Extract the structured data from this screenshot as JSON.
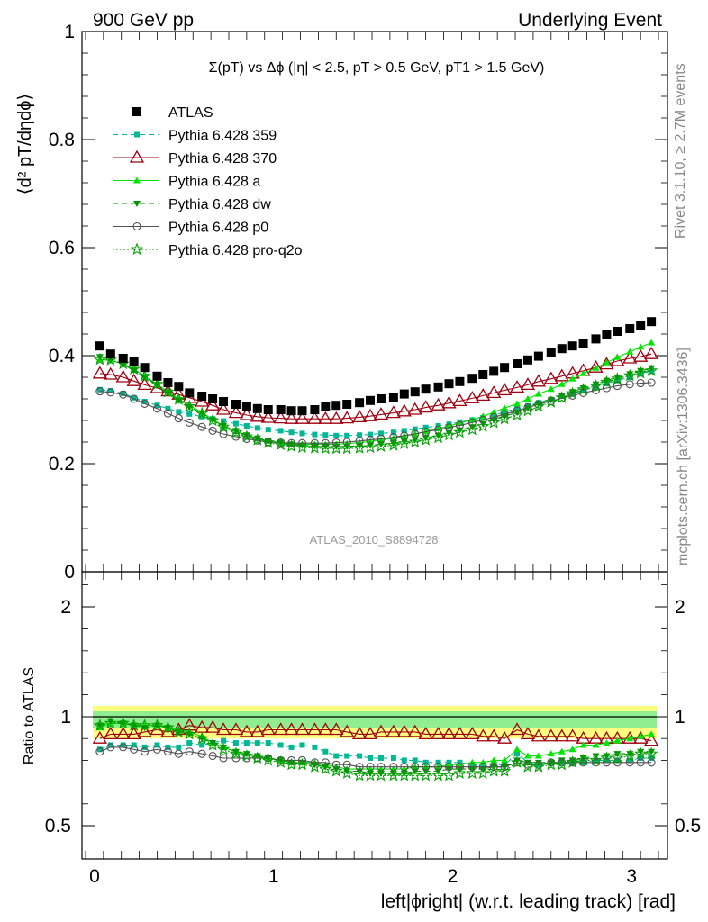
{
  "header": {
    "left": "900 GeV pp",
    "right": "Underlying Event"
  },
  "side_labels": {
    "rivet": "Rivet 3.1.10, ≥ 2.7M events",
    "mcplots": "mcplots.cern.ch [arXiv:1306.3436]"
  },
  "colors": {
    "atlas": "#000000",
    "p359": "#00b894",
    "p370": "#a0000f",
    "pa": "#00e600",
    "pdw": "#009600",
    "pp0": "#505050",
    "pq2o": "#00a000",
    "band_outer": "#ffff80",
    "band_inner": "#90ee90"
  },
  "chart_data": [
    {
      "type": "scatter",
      "title": "Σ(pT) vs Δϕ (|η| < 2.5, pT > 0.5 GeV, pT1 > 1.5 GeV)",
      "ylabel": "⟨d² pT/dηdϕ⟩",
      "xlabel": "",
      "annotation": "ATLAS_2010_S8894728",
      "ylim": [
        0,
        1
      ],
      "xlim": [
        -0.07,
        3.2
      ],
      "yticks": [
        "0",
        "0.2",
        "0.4",
        "0.6",
        "0.8",
        "1"
      ],
      "x": [
        0.03,
        0.09,
        0.16,
        0.22,
        0.28,
        0.35,
        0.41,
        0.47,
        0.53,
        0.6,
        0.66,
        0.72,
        0.79,
        0.85,
        0.91,
        0.97,
        1.04,
        1.1,
        1.16,
        1.23,
        1.29,
        1.35,
        1.41,
        1.48,
        1.54,
        1.6,
        1.67,
        1.73,
        1.79,
        1.85,
        1.92,
        1.98,
        2.04,
        2.11,
        2.17,
        2.23,
        2.29,
        2.36,
        2.42,
        2.48,
        2.55,
        2.61,
        2.67,
        2.73,
        2.8,
        2.86,
        2.92,
        2.99,
        3.05,
        3.11
      ],
      "series": [
        {
          "name": "ATLAS",
          "key": "atlas",
          "values": [
            0.418,
            0.403,
            0.395,
            0.39,
            0.378,
            0.362,
            0.35,
            0.343,
            0.331,
            0.325,
            0.32,
            0.315,
            0.31,
            0.305,
            0.302,
            0.3,
            0.3,
            0.298,
            0.298,
            0.3,
            0.305,
            0.308,
            0.31,
            0.313,
            0.317,
            0.32,
            0.323,
            0.329,
            0.333,
            0.338,
            0.342,
            0.348,
            0.352,
            0.358,
            0.365,
            0.371,
            0.378,
            0.385,
            0.392,
            0.399,
            0.405,
            0.413,
            0.418,
            0.423,
            0.431,
            0.439,
            0.445,
            0.45,
            0.455,
            0.463
          ]
        },
        {
          "name": "Pythia 6.428 359",
          "key": "p359",
          "values": [
            0.337,
            0.335,
            0.33,
            0.322,
            0.315,
            0.308,
            0.302,
            0.296,
            0.292,
            0.287,
            0.283,
            0.279,
            0.274,
            0.27,
            0.266,
            0.263,
            0.261,
            0.258,
            0.256,
            0.254,
            0.253,
            0.252,
            0.252,
            0.253,
            0.254,
            0.256,
            0.258,
            0.261,
            0.264,
            0.267,
            0.27,
            0.273,
            0.277,
            0.281,
            0.285,
            0.29,
            0.296,
            0.302,
            0.307,
            0.313,
            0.319,
            0.325,
            0.33,
            0.336,
            0.342,
            0.348,
            0.354,
            0.36,
            0.366,
            0.372
          ]
        },
        {
          "name": "Pythia 6.428 370",
          "key": "p370",
          "values": [
            0.367,
            0.365,
            0.36,
            0.353,
            0.346,
            0.34,
            0.334,
            0.328,
            0.322,
            0.315,
            0.308,
            0.3,
            0.294,
            0.29,
            0.287,
            0.285,
            0.284,
            0.283,
            0.283,
            0.283,
            0.283,
            0.283,
            0.284,
            0.286,
            0.288,
            0.291,
            0.294,
            0.297,
            0.3,
            0.304,
            0.308,
            0.312,
            0.316,
            0.321,
            0.326,
            0.331,
            0.336,
            0.341,
            0.346,
            0.352,
            0.357,
            0.362,
            0.367,
            0.372,
            0.378,
            0.384,
            0.39,
            0.395,
            0.398,
            0.403
          ]
        },
        {
          "name": "Pythia 6.428 a",
          "key": "pa",
          "values": [
            0.393,
            0.391,
            0.385,
            0.375,
            0.362,
            0.347,
            0.333,
            0.32,
            0.308,
            0.295,
            0.282,
            0.27,
            0.26,
            0.252,
            0.246,
            0.242,
            0.239,
            0.237,
            0.236,
            0.236,
            0.236,
            0.236,
            0.237,
            0.239,
            0.241,
            0.244,
            0.247,
            0.251,
            0.255,
            0.26,
            0.265,
            0.27,
            0.275,
            0.281,
            0.288,
            0.295,
            0.303,
            0.311,
            0.32,
            0.329,
            0.338,
            0.347,
            0.357,
            0.367,
            0.377,
            0.387,
            0.397,
            0.407,
            0.416,
            0.424
          ]
        },
        {
          "name": "Pythia 6.428 dw",
          "key": "pdw",
          "values": [
            0.398,
            0.393,
            0.384,
            0.373,
            0.36,
            0.346,
            0.331,
            0.317,
            0.305,
            0.293,
            0.281,
            0.27,
            0.261,
            0.253,
            0.247,
            0.242,
            0.239,
            0.236,
            0.234,
            0.233,
            0.232,
            0.232,
            0.232,
            0.233,
            0.234,
            0.236,
            0.238,
            0.241,
            0.244,
            0.248,
            0.252,
            0.257,
            0.262,
            0.268,
            0.274,
            0.281,
            0.288,
            0.295,
            0.303,
            0.311,
            0.318,
            0.326,
            0.333,
            0.34,
            0.347,
            0.354,
            0.36,
            0.366,
            0.372,
            0.377
          ]
        },
        {
          "name": "Pythia 6.428 p0",
          "key": "pp0",
          "values": [
            0.334,
            0.332,
            0.328,
            0.32,
            0.311,
            0.302,
            0.293,
            0.284,
            0.276,
            0.268,
            0.261,
            0.255,
            0.25,
            0.246,
            0.243,
            0.24,
            0.239,
            0.238,
            0.238,
            0.238,
            0.238,
            0.239,
            0.24,
            0.242,
            0.244,
            0.246,
            0.249,
            0.252,
            0.255,
            0.259,
            0.263,
            0.267,
            0.271,
            0.276,
            0.281,
            0.286,
            0.292,
            0.298,
            0.304,
            0.31,
            0.316,
            0.321,
            0.326,
            0.331,
            0.336,
            0.34,
            0.344,
            0.347,
            0.349,
            0.35
          ]
        },
        {
          "name": "Pythia 6.428 pro-q2o",
          "key": "pq2o",
          "values": [
            0.393,
            0.392,
            0.385,
            0.375,
            0.362,
            0.347,
            0.333,
            0.319,
            0.306,
            0.293,
            0.28,
            0.268,
            0.258,
            0.25,
            0.244,
            0.239,
            0.235,
            0.232,
            0.23,
            0.229,
            0.228,
            0.228,
            0.228,
            0.229,
            0.23,
            0.232,
            0.234,
            0.237,
            0.24,
            0.244,
            0.248,
            0.253,
            0.258,
            0.263,
            0.269,
            0.276,
            0.283,
            0.29,
            0.298,
            0.306,
            0.314,
            0.322,
            0.33,
            0.337,
            0.344,
            0.351,
            0.357,
            0.363,
            0.368,
            0.372
          ]
        }
      ]
    },
    {
      "type": "line",
      "ylabel": "Ratio to ATLAS",
      "xlabel": "left|ϕright| (w.r.t. leading track) [rad]",
      "ylim": [
        0.25,
        2.25
      ],
      "xlim": [
        -0.07,
        3.2
      ],
      "xticks": [
        "0",
        "1",
        "2",
        "3"
      ],
      "yticks": [
        "0.5",
        "1",
        "2"
      ],
      "band_outer": [
        0.9,
        1.1
      ],
      "band_inner": [
        0.95,
        1.05
      ],
      "x": [
        0.03,
        0.09,
        0.16,
        0.22,
        0.28,
        0.35,
        0.41,
        0.47,
        0.53,
        0.6,
        0.66,
        0.72,
        0.79,
        0.85,
        0.91,
        0.97,
        1.04,
        1.1,
        1.16,
        1.23,
        1.29,
        1.35,
        1.41,
        1.48,
        1.54,
        1.6,
        1.67,
        1.73,
        1.79,
        1.85,
        1.92,
        1.98,
        2.04,
        2.11,
        2.17,
        2.23,
        2.29,
        2.36,
        2.42,
        2.48,
        2.55,
        2.61,
        2.67,
        2.73,
        2.8,
        2.86,
        2.92,
        2.99,
        3.05,
        3.11
      ],
      "series": [
        {
          "name": "Pythia 6.428 359",
          "key": "p359",
          "values": [
            0.85,
            0.87,
            0.87,
            0.87,
            0.86,
            0.87,
            0.86,
            0.86,
            0.88,
            0.87,
            0.88,
            0.89,
            0.88,
            0.88,
            0.88,
            0.88,
            0.87,
            0.86,
            0.87,
            0.86,
            0.84,
            0.82,
            0.82,
            0.82,
            0.81,
            0.81,
            0.81,
            0.8,
            0.8,
            0.79,
            0.79,
            0.79,
            0.79,
            0.78,
            0.78,
            0.78,
            0.78,
            0.83,
            0.79,
            0.78,
            0.79,
            0.79,
            0.79,
            0.79,
            0.8,
            0.8,
            0.8,
            0.8,
            0.81,
            0.81
          ]
        },
        {
          "name": "Pythia 6.428 370",
          "key": "p370",
          "values": [
            0.9,
            0.92,
            0.92,
            0.92,
            0.93,
            0.94,
            0.93,
            0.94,
            0.96,
            0.95,
            0.95,
            0.94,
            0.94,
            0.93,
            0.93,
            0.94,
            0.94,
            0.94,
            0.94,
            0.94,
            0.94,
            0.94,
            0.93,
            0.92,
            0.92,
            0.93,
            0.93,
            0.93,
            0.93,
            0.92,
            0.92,
            0.92,
            0.92,
            0.92,
            0.91,
            0.91,
            0.9,
            0.94,
            0.92,
            0.91,
            0.91,
            0.91,
            0.91,
            0.9,
            0.9,
            0.9,
            0.9,
            0.9,
            0.9,
            0.89
          ]
        },
        {
          "name": "Pythia 6.428 a",
          "key": "pa",
          "values": [
            0.95,
            0.97,
            0.97,
            0.96,
            0.96,
            0.96,
            0.95,
            0.94,
            0.93,
            0.91,
            0.88,
            0.86,
            0.84,
            0.83,
            0.82,
            0.81,
            0.8,
            0.79,
            0.79,
            0.79,
            0.78,
            0.77,
            0.76,
            0.76,
            0.76,
            0.76,
            0.76,
            0.76,
            0.77,
            0.77,
            0.77,
            0.78,
            0.78,
            0.79,
            0.79,
            0.8,
            0.8,
            0.85,
            0.82,
            0.82,
            0.83,
            0.84,
            0.85,
            0.87,
            0.87,
            0.88,
            0.89,
            0.9,
            0.91,
            0.92
          ]
        },
        {
          "name": "Pythia 6.428 dw",
          "key": "pdw",
          "values": [
            0.96,
            0.98,
            0.97,
            0.96,
            0.95,
            0.96,
            0.95,
            0.93,
            0.92,
            0.9,
            0.88,
            0.86,
            0.84,
            0.83,
            0.82,
            0.81,
            0.8,
            0.79,
            0.79,
            0.78,
            0.77,
            0.76,
            0.75,
            0.75,
            0.74,
            0.74,
            0.74,
            0.74,
            0.75,
            0.75,
            0.75,
            0.76,
            0.76,
            0.76,
            0.76,
            0.77,
            0.77,
            0.8,
            0.79,
            0.79,
            0.79,
            0.8,
            0.8,
            0.81,
            0.82,
            0.82,
            0.83,
            0.83,
            0.84,
            0.84
          ]
        },
        {
          "name": "Pythia 6.428 p0",
          "key": "pp0",
          "values": [
            0.84,
            0.86,
            0.86,
            0.85,
            0.84,
            0.85,
            0.84,
            0.83,
            0.84,
            0.83,
            0.82,
            0.81,
            0.81,
            0.81,
            0.81,
            0.81,
            0.8,
            0.8,
            0.8,
            0.79,
            0.79,
            0.78,
            0.78,
            0.77,
            0.77,
            0.77,
            0.77,
            0.77,
            0.77,
            0.77,
            0.77,
            0.77,
            0.77,
            0.77,
            0.77,
            0.77,
            0.77,
            0.79,
            0.78,
            0.78,
            0.79,
            0.79,
            0.79,
            0.79,
            0.79,
            0.79,
            0.79,
            0.79,
            0.79,
            0.79
          ]
        },
        {
          "name": "Pythia 6.428 pro-q2o",
          "key": "pq2o",
          "values": [
            0.96,
            0.97,
            0.97,
            0.96,
            0.96,
            0.96,
            0.95,
            0.93,
            0.92,
            0.9,
            0.87,
            0.85,
            0.83,
            0.82,
            0.81,
            0.8,
            0.79,
            0.78,
            0.78,
            0.77,
            0.76,
            0.75,
            0.74,
            0.73,
            0.73,
            0.73,
            0.73,
            0.73,
            0.73,
            0.73,
            0.73,
            0.73,
            0.74,
            0.74,
            0.74,
            0.75,
            0.75,
            0.79,
            0.77,
            0.77,
            0.78,
            0.78,
            0.79,
            0.8,
            0.8,
            0.81,
            0.81,
            0.82,
            0.83,
            0.83
          ]
        }
      ]
    }
  ],
  "legend": [
    {
      "label": "ATLAS",
      "key": "atlas",
      "marker": "square",
      "dash": "none"
    },
    {
      "label": "Pythia 6.428 359",
      "key": "p359",
      "marker": "smallsquare",
      "dash": "6,4"
    },
    {
      "label": "Pythia 6.428 370",
      "key": "p370",
      "marker": "triangle-open",
      "dash": ""
    },
    {
      "label": "Pythia 6.428 a",
      "key": "pa",
      "marker": "triangle",
      "dash": ""
    },
    {
      "label": "Pythia 6.428 dw",
      "key": "pdw",
      "marker": "triangle-down",
      "dash": "6,4"
    },
    {
      "label": "Pythia 6.428 p0",
      "key": "pp0",
      "marker": "circle-open",
      "dash": ""
    },
    {
      "label": "Pythia 6.428 pro-q2o",
      "key": "pq2o",
      "marker": "star",
      "dash": "2,2"
    }
  ]
}
